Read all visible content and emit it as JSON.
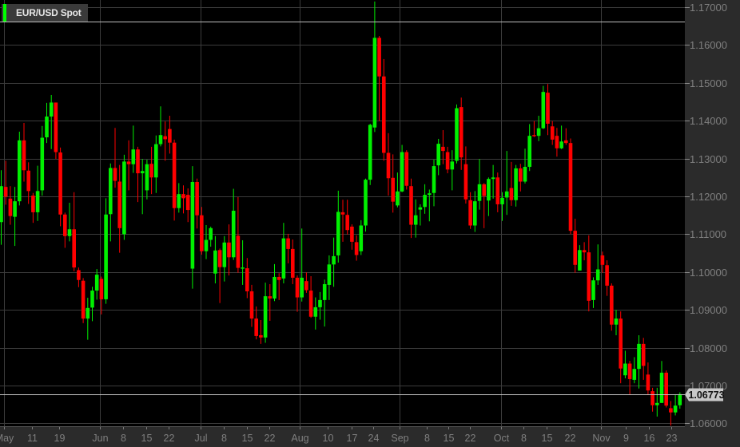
{
  "chart_data": {
    "type": "candlestick",
    "title": "EUR/USD Spot",
    "ylim": [
      1.06,
      1.17
    ],
    "yticks": [
      1.17,
      1.16,
      1.15,
      1.14,
      1.13,
      1.12,
      1.11,
      1.1,
      1.09,
      1.08,
      1.07,
      1.06
    ],
    "ytick_labels": [
      "1.17000",
      "1.16000",
      "1.15000",
      "1.14000",
      "1.13000",
      "1.12000",
      "1.11000",
      "1.10000",
      "1.09000",
      "1.08000",
      "1.07000",
      "1.06000"
    ],
    "grid": true,
    "last_price": 1.06773,
    "last_price_label": "1.06773",
    "reference_line": 1.1662,
    "xticks": [
      {
        "label": "May",
        "index": 0.6,
        "major": true
      },
      {
        "label": "11",
        "index": 6.75,
        "major": false
      },
      {
        "label": "19",
        "index": 12.7,
        "major": false
      },
      {
        "label": "Jun",
        "index": 21.7,
        "major": true
      },
      {
        "label": "8",
        "index": 26.8,
        "major": false
      },
      {
        "label": "15",
        "index": 31.8,
        "major": false
      },
      {
        "label": "22",
        "index": 36.8,
        "major": false
      },
      {
        "label": "Jul",
        "index": 43.8,
        "major": true
      },
      {
        "label": "8",
        "index": 48.9,
        "major": false
      },
      {
        "label": "15",
        "index": 53.9,
        "major": false
      },
      {
        "label": "22",
        "index": 58.9,
        "major": false
      },
      {
        "label": "Aug",
        "index": 65.5,
        "major": true
      },
      {
        "label": "10",
        "index": 71.7,
        "major": false
      },
      {
        "label": "17",
        "index": 76.9,
        "major": false
      },
      {
        "label": "24",
        "index": 81.7,
        "major": false
      },
      {
        "label": "Sep",
        "index": 87.5,
        "major": true
      },
      {
        "label": "8",
        "index": 93.4,
        "major": false
      },
      {
        "label": "15",
        "index": 98.2,
        "major": false
      },
      {
        "label": "22",
        "index": 102.9,
        "major": false
      },
      {
        "label": "Oct",
        "index": 109.7,
        "major": true
      },
      {
        "label": "8",
        "index": 114.7,
        "major": false
      },
      {
        "label": "15",
        "index": 119.7,
        "major": false
      },
      {
        "label": "22",
        "index": 124.8,
        "major": false
      },
      {
        "label": "Nov",
        "index": 131.7,
        "major": true
      },
      {
        "label": "9",
        "index": 137.1,
        "major": false
      },
      {
        "label": "16",
        "index": 142.2,
        "major": false
      },
      {
        "label": "23",
        "index": 147.1,
        "major": false
      }
    ],
    "ohlc_fields": [
      "open",
      "high",
      "low",
      "close"
    ],
    "ohlc": [
      [
        1.1132,
        1.1269,
        1.1072,
        1.1227
      ],
      [
        1.1225,
        1.1294,
        1.1178,
        1.1199
      ],
      [
        1.1194,
        1.1227,
        1.1125,
        1.1148
      ],
      [
        1.1146,
        1.1225,
        1.1069,
        1.1187
      ],
      [
        1.1187,
        1.1371,
        1.1176,
        1.1348
      ],
      [
        1.1348,
        1.1394,
        1.1239,
        1.1269
      ],
      [
        1.1268,
        1.129,
        1.118,
        1.1214
      ],
      [
        1.1202,
        1.1209,
        1.113,
        1.1158
      ],
      [
        1.1158,
        1.1281,
        1.1135,
        1.1214
      ],
      [
        1.1216,
        1.1386,
        1.1202,
        1.1355
      ],
      [
        1.1356,
        1.1447,
        1.1341,
        1.1411
      ],
      [
        1.1411,
        1.1468,
        1.1325,
        1.1448
      ],
      [
        1.1448,
        1.1448,
        1.1299,
        1.1317
      ],
      [
        1.1316,
        1.1329,
        1.1121,
        1.1152
      ],
      [
        1.1152,
        1.1157,
        1.1064,
        1.1095
      ],
      [
        1.1095,
        1.1183,
        1.1081,
        1.1113
      ],
      [
        1.1113,
        1.1211,
        1.1002,
        1.1012
      ],
      [
        1.1005,
        1.1012,
        1.096,
        1.0979
      ],
      [
        1.0977,
        1.0984,
        1.0865,
        1.0877
      ],
      [
        1.0877,
        1.0932,
        1.0821,
        1.0905
      ],
      [
        1.0906,
        1.0961,
        1.087,
        1.0951
      ],
      [
        1.0951,
        1.1008,
        1.0927,
        1.0993
      ],
      [
        1.0982,
        1.0988,
        1.0888,
        1.0928
      ],
      [
        1.0928,
        1.1195,
        1.0916,
        1.1152
      ],
      [
        1.1153,
        1.1287,
        1.1081,
        1.1275
      ],
      [
        1.1275,
        1.1381,
        1.1223,
        1.1241
      ],
      [
        1.1239,
        1.1283,
        1.1051,
        1.1116
      ],
      [
        1.11,
        1.131,
        1.1085,
        1.1292
      ],
      [
        1.1292,
        1.1348,
        1.1216,
        1.1285
      ],
      [
        1.1285,
        1.1387,
        1.1262,
        1.1324
      ],
      [
        1.1324,
        1.1331,
        1.1185,
        1.1261
      ],
      [
        1.1261,
        1.1299,
        1.1153,
        1.1267
      ],
      [
        1.1216,
        1.1297,
        1.1192,
        1.1285
      ],
      [
        1.1286,
        1.1331,
        1.1206,
        1.125
      ],
      [
        1.125,
        1.1361,
        1.1209,
        1.1338
      ],
      [
        1.1338,
        1.1438,
        1.1332,
        1.1362
      ],
      [
        1.1359,
        1.1398,
        1.1294,
        1.1351
      ],
      [
        1.1378,
        1.1413,
        1.1313,
        1.1342
      ],
      [
        1.1342,
        1.135,
        1.1136,
        1.1169
      ],
      [
        1.1169,
        1.1235,
        1.1157,
        1.1206
      ],
      [
        1.1206,
        1.1229,
        1.1155,
        1.1195
      ],
      [
        1.1204,
        1.1221,
        1.1132,
        1.1164
      ],
      [
        1.1009,
        1.128,
        1.0956,
        1.1238
      ],
      [
        1.1238,
        1.1247,
        1.1115,
        1.115
      ],
      [
        1.115,
        1.1172,
        1.1046,
        1.1055
      ],
      [
        1.1055,
        1.1124,
        1.1034,
        1.1085
      ],
      [
        1.1085,
        1.112,
        1.1067,
        1.1116
      ],
      [
        1.0996,
        1.1095,
        1.097,
        1.1057
      ],
      [
        1.1058,
        1.1062,
        1.0918,
        1.1013
      ],
      [
        1.1013,
        1.1095,
        1.0975,
        1.1078
      ],
      [
        1.1078,
        1.1126,
        1.0991,
        1.1039
      ],
      [
        1.1039,
        1.122,
        1.1032,
        1.1162
      ],
      [
        1.1096,
        1.1198,
        1.0998,
        1.1011
      ],
      [
        1.1012,
        1.1084,
        1.0966,
        1.1012
      ],
      [
        1.101,
        1.1037,
        1.0931,
        1.0949
      ],
      [
        1.0949,
        1.0966,
        1.0855,
        1.0877
      ],
      [
        1.0877,
        1.0909,
        1.0822,
        1.0831
      ],
      [
        1.0833,
        1.0873,
        1.081,
        1.0827
      ],
      [
        1.0827,
        1.0972,
        1.0813,
        1.0936
      ],
      [
        1.0936,
        1.0968,
        1.0871,
        1.093
      ],
      [
        1.093,
        1.1021,
        1.0923,
        1.0987
      ],
      [
        1.0987,
        1.0997,
        1.0926,
        1.0979
      ],
      [
        1.0983,
        1.113,
        1.097,
        1.1089
      ],
      [
        1.1089,
        1.1101,
        1.1023,
        1.1061
      ],
      [
        1.1061,
        1.1086,
        1.0968,
        1.0985
      ],
      [
        1.0985,
        1.0991,
        1.0895,
        1.0933
      ],
      [
        1.0933,
        1.1115,
        1.0922,
        1.0985
      ],
      [
        1.0976,
        1.0999,
        1.0945,
        1.0952
      ],
      [
        1.0951,
        1.0989,
        1.0879,
        1.0882
      ],
      [
        1.0882,
        1.0933,
        1.0848,
        1.0907
      ],
      [
        1.0907,
        1.0947,
        1.0874,
        1.0926
      ],
      [
        1.0926,
        1.098,
        1.0856,
        1.0968
      ],
      [
        1.0966,
        1.1044,
        1.0926,
        1.102
      ],
      [
        1.102,
        1.1091,
        1.0961,
        1.1042
      ],
      [
        1.1044,
        1.1215,
        1.1025,
        1.1159
      ],
      [
        1.1158,
        1.1191,
        1.108,
        1.1152
      ],
      [
        1.1151,
        1.1191,
        1.1099,
        1.1111
      ],
      [
        1.112,
        1.1126,
        1.1059,
        1.108
      ],
      [
        1.1079,
        1.1097,
        1.103,
        1.1045
      ],
      [
        1.1055,
        1.1137,
        1.1045,
        1.1123
      ],
      [
        1.1123,
        1.1247,
        1.1107,
        1.1244
      ],
      [
        1.1244,
        1.1392,
        1.123,
        1.1389
      ],
      [
        1.1382,
        1.1715,
        1.137,
        1.1619
      ],
      [
        1.1619,
        1.1624,
        1.1399,
        1.1517
      ],
      [
        1.1517,
        1.1563,
        1.1294,
        1.1315
      ],
      [
        1.1315,
        1.1367,
        1.1202,
        1.1248
      ],
      [
        1.1249,
        1.1311,
        1.1157,
        1.1186
      ],
      [
        1.1176,
        1.1263,
        1.1171,
        1.1213
      ],
      [
        1.1213,
        1.1336,
        1.1211,
        1.1317
      ],
      [
        1.1317,
        1.1322,
        1.1218,
        1.1228
      ],
      [
        1.1227,
        1.1247,
        1.109,
        1.1125
      ],
      [
        1.1125,
        1.1192,
        1.1091,
        1.115
      ],
      [
        1.1165,
        1.1179,
        1.1123,
        1.1171
      ],
      [
        1.1172,
        1.1232,
        1.1154,
        1.1204
      ],
      [
        1.1204,
        1.1218,
        1.1134,
        1.1208
      ],
      [
        1.1209,
        1.1297,
        1.1174,
        1.128
      ],
      [
        1.1282,
        1.1352,
        1.1256,
        1.1339
      ],
      [
        1.1331,
        1.1375,
        1.1285,
        1.132
      ],
      [
        1.1317,
        1.1331,
        1.1261,
        1.1271
      ],
      [
        1.1271,
        1.1322,
        1.1216,
        1.1292
      ],
      [
        1.1294,
        1.1443,
        1.1287,
        1.1433
      ],
      [
        1.1436,
        1.1461,
        1.127,
        1.1303
      ],
      [
        1.1285,
        1.1332,
        1.1181,
        1.1192
      ],
      [
        1.119,
        1.1211,
        1.1114,
        1.1123
      ],
      [
        1.1123,
        1.1214,
        1.1106,
        1.1187
      ],
      [
        1.1188,
        1.1299,
        1.1165,
        1.1232
      ],
      [
        1.1232,
        1.1235,
        1.1116,
        1.1201
      ],
      [
        1.1189,
        1.125,
        1.1148,
        1.1246
      ],
      [
        1.1246,
        1.1283,
        1.1194,
        1.125
      ],
      [
        1.125,
        1.1263,
        1.1158,
        1.1179
      ],
      [
        1.1179,
        1.1211,
        1.1135,
        1.1196
      ],
      [
        1.1197,
        1.132,
        1.1151,
        1.1213
      ],
      [
        1.1222,
        1.1291,
        1.1175,
        1.119
      ],
      [
        1.119,
        1.1283,
        1.1173,
        1.1274
      ],
      [
        1.1274,
        1.1286,
        1.1213,
        1.1239
      ],
      [
        1.1239,
        1.1326,
        1.1234,
        1.1278
      ],
      [
        1.1278,
        1.1391,
        1.1267,
        1.136
      ],
      [
        1.1362,
        1.1399,
        1.1357,
        1.1359
      ],
      [
        1.136,
        1.1413,
        1.1346,
        1.138
      ],
      [
        1.138,
        1.1492,
        1.1378,
        1.1476
      ],
      [
        1.1474,
        1.1497,
        1.1362,
        1.1392
      ],
      [
        1.1385,
        1.1399,
        1.1336,
        1.135
      ],
      [
        1.136,
        1.1381,
        1.1305,
        1.1327
      ],
      [
        1.1327,
        1.1387,
        1.1325,
        1.1345
      ],
      [
        1.1348,
        1.138,
        1.1336,
        1.1341
      ],
      [
        1.1341,
        1.1353,
        1.11,
        1.1109
      ],
      [
        1.1109,
        1.1141,
        1.0998,
        1.1019
      ],
      [
        1.1004,
        1.1071,
        1.1004,
        1.1058
      ],
      [
        1.1058,
        1.1079,
        1.1031,
        1.1052
      ],
      [
        1.1052,
        1.1097,
        1.0896,
        1.0924
      ],
      [
        1.0926,
        1.0986,
        1.0905,
        1.0978
      ],
      [
        1.0978,
        1.1073,
        1.0966,
        1.1007
      ],
      [
        1.1044,
        1.1054,
        1.0998,
        1.1019
      ],
      [
        1.1018,
        1.1031,
        1.0937,
        1.0964
      ],
      [
        1.0964,
        1.097,
        1.0845,
        1.0861
      ],
      [
        1.0861,
        1.09,
        1.0833,
        1.0877
      ],
      [
        1.0877,
        1.0896,
        1.0706,
        1.0745
      ],
      [
        1.0727,
        1.0792,
        1.0719,
        1.0758
      ],
      [
        1.0758,
        1.0765,
        1.0675,
        1.0717
      ],
      [
        1.0715,
        1.0775,
        1.0706,
        1.0744
      ],
      [
        1.0744,
        1.0833,
        1.0692,
        1.081
      ],
      [
        1.081,
        1.0826,
        1.0715,
        1.0752
      ],
      [
        1.0729,
        1.0761,
        1.0675,
        1.0687
      ],
      [
        1.0685,
        1.0694,
        1.0631,
        1.0648
      ],
      [
        1.0648,
        1.0694,
        1.0618,
        1.0654
      ],
      [
        1.0654,
        1.0765,
        1.0654,
        1.0734
      ],
      [
        1.0734,
        1.074,
        1.0642,
        1.0647
      ],
      [
        1.064,
        1.0659,
        1.0594,
        1.0629
      ],
      [
        1.0629,
        1.0677,
        1.0621,
        1.0647
      ],
      [
        1.0648,
        1.0682,
        1.0639,
        1.06773
      ]
    ]
  },
  "colors": {
    "up": "#00f000",
    "down": "#ff0000",
    "background": "#000000",
    "axis_panel": "#2b2b2b",
    "grid": "#3c3c3c",
    "axis_text": "#7f7f7f",
    "legend_marker": "#00ff00",
    "price_tag": "#c8c8c8"
  }
}
